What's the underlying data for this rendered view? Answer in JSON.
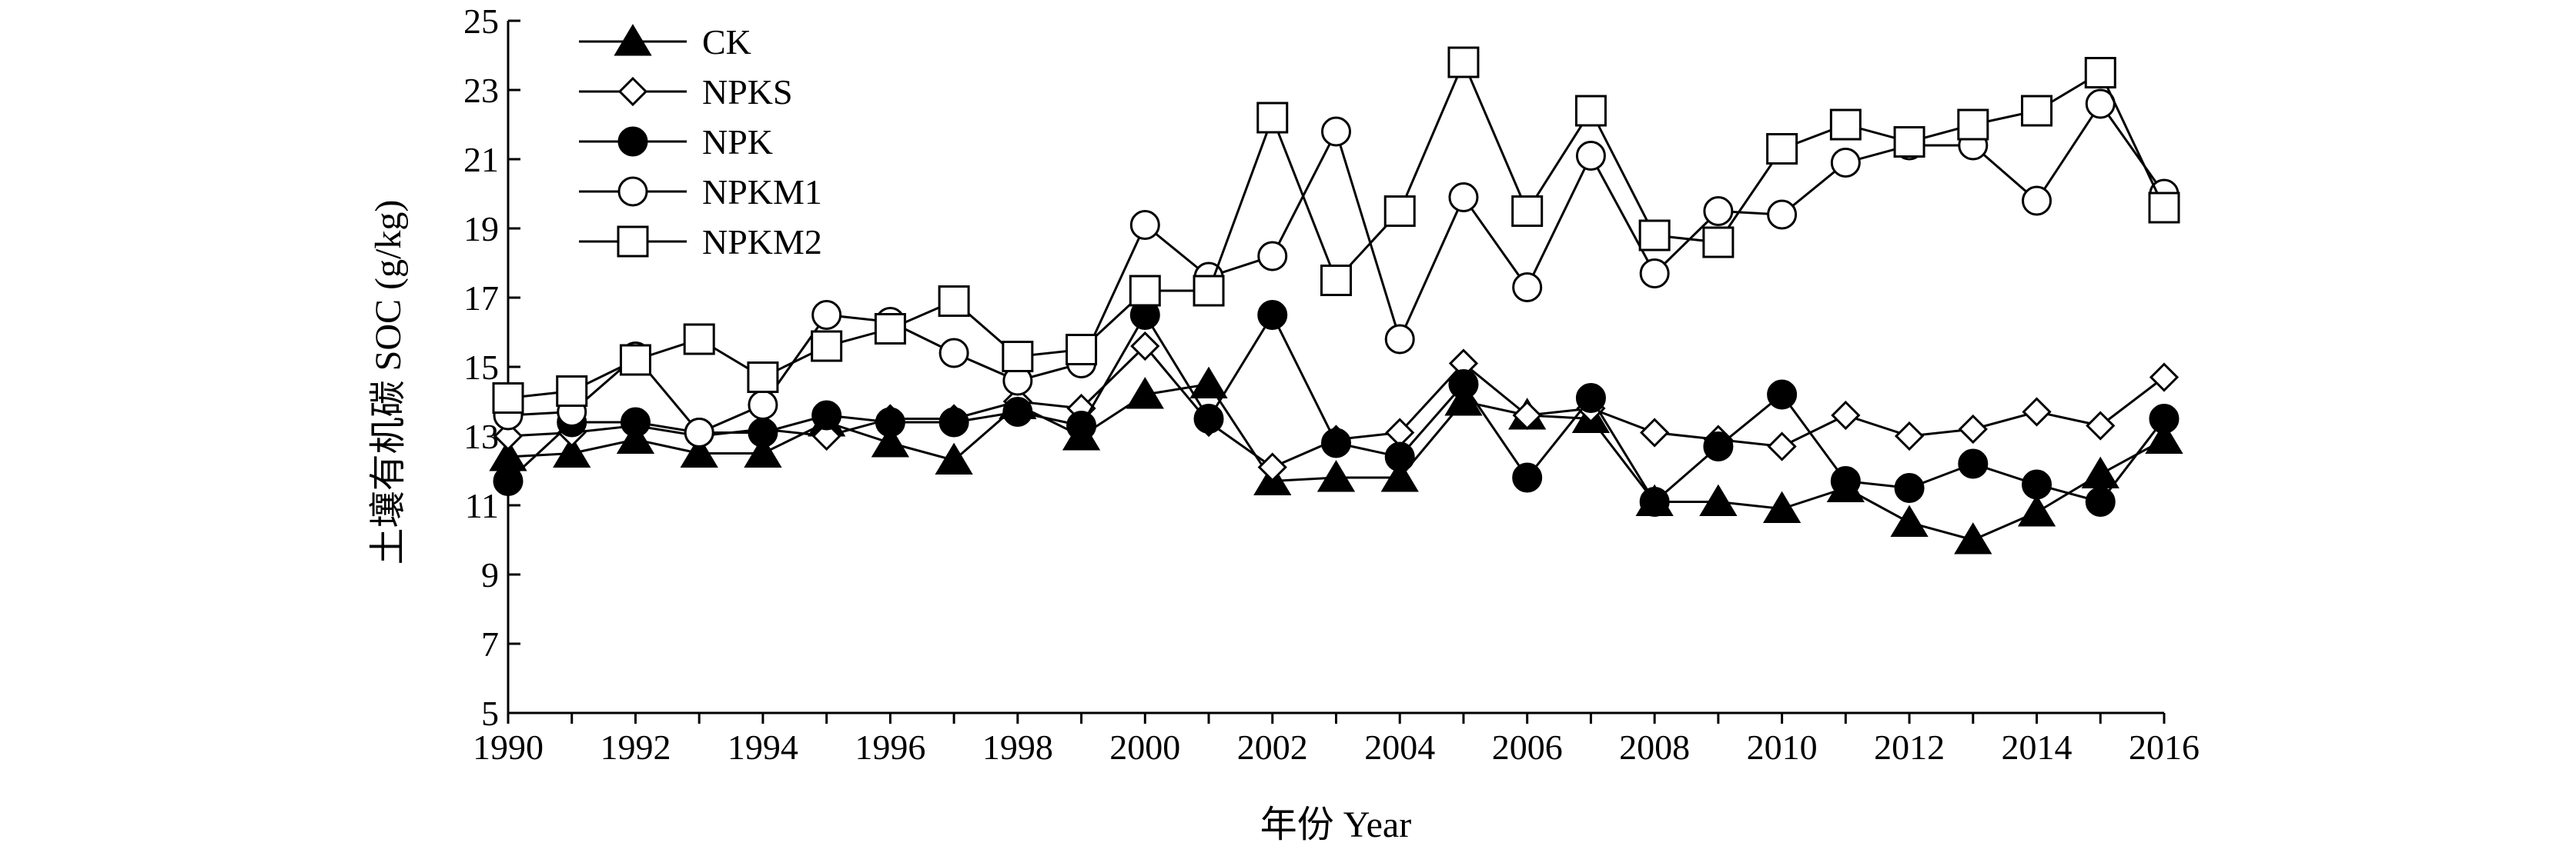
{
  "chart_data": {
    "type": "line",
    "xlabel": "年份 Year",
    "ylabel": "土壤有机碳 SOC (g/kg)",
    "xlim": [
      1990,
      2016
    ],
    "ylim": [
      5,
      25
    ],
    "x_ticks": [
      "1990",
      "1992",
      "1994",
      "1996",
      "1998",
      "2000",
      "2002",
      "2004",
      "2006",
      "2008",
      "2010",
      "2012",
      "2014",
      "2016"
    ],
    "y_ticks": [
      "5",
      "7",
      "9",
      "11",
      "13",
      "15",
      "17",
      "19",
      "21",
      "23",
      "25"
    ],
    "grid": false,
    "legend_position": "top-left",
    "x": [
      1990,
      1991,
      1992,
      1993,
      1994,
      1995,
      1996,
      1997,
      1998,
      1999,
      2000,
      2001,
      2002,
      2003,
      2004,
      2005,
      2006,
      2007,
      2008,
      2009,
      2010,
      2011,
      2012,
      2013,
      2014,
      2015,
      2016
    ],
    "series": [
      {
        "name": "CK",
        "marker": "triangle-filled",
        "values": [
          12.4,
          12.5,
          12.9,
          12.5,
          12.5,
          13.4,
          12.8,
          12.3,
          13.9,
          13.0,
          14.2,
          14.5,
          11.7,
          11.8,
          11.8,
          14.0,
          13.6,
          13.5,
          11.1,
          11.1,
          10.9,
          11.5,
          10.5,
          10.0,
          10.8,
          11.9,
          12.9
        ]
      },
      {
        "name": "NPKS",
        "marker": "diamond-open",
        "values": [
          13.0,
          13.1,
          13.3,
          13.0,
          13.2,
          13.0,
          13.5,
          13.5,
          14.0,
          13.8,
          15.6,
          13.4,
          12.1,
          12.9,
          13.1,
          15.1,
          13.6,
          13.8,
          13.1,
          12.9,
          12.7,
          13.6,
          13.0,
          13.2,
          13.7,
          13.3,
          14.7
        ]
      },
      {
        "name": "NPK",
        "marker": "circle-filled",
        "values": [
          11.7,
          13.4,
          13.4,
          13.1,
          13.1,
          13.6,
          13.4,
          13.4,
          13.7,
          13.3,
          16.5,
          13.5,
          16.5,
          12.8,
          12.4,
          14.5,
          11.8,
          14.1,
          11.1,
          12.7,
          14.2,
          11.7,
          11.5,
          12.2,
          11.6,
          11.1,
          13.5
        ]
      },
      {
        "name": "NPKM1",
        "marker": "circle-open",
        "values": [
          13.6,
          13.7,
          15.3,
          13.1,
          13.9,
          16.5,
          16.3,
          15.4,
          14.6,
          15.1,
          19.1,
          17.6,
          18.2,
          21.8,
          15.8,
          19.9,
          17.3,
          21.1,
          17.7,
          19.5,
          19.4,
          20.9,
          21.4,
          21.4,
          19.8,
          22.6,
          20.0
        ]
      },
      {
        "name": "NPKM2",
        "marker": "square-open",
        "values": [
          14.1,
          14.3,
          15.2,
          15.8,
          14.7,
          15.6,
          16.1,
          16.9,
          15.3,
          15.5,
          17.2,
          17.2,
          22.2,
          17.5,
          19.5,
          23.8,
          19.5,
          22.4,
          18.8,
          18.6,
          21.3,
          22.0,
          21.5,
          22.0,
          22.4,
          23.5,
          19.6
        ]
      }
    ]
  }
}
